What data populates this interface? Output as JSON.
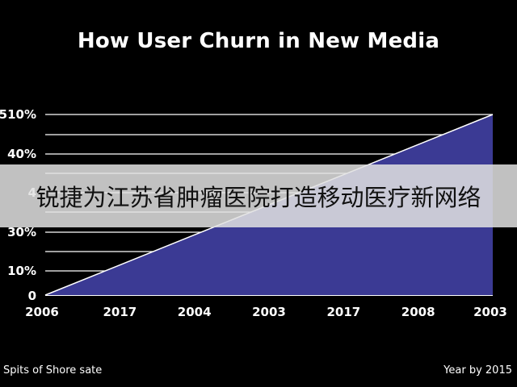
{
  "chart_data": {
    "type": "area",
    "title": "How User Churn in New Media",
    "categories": [
      "2006",
      "2017",
      "2004",
      "2003",
      "2017",
      "2008",
      "2003"
    ],
    "y_tick_labels": [
      "510%",
      "40%",
      "4",
      "30%",
      "10%",
      "0"
    ],
    "series": [
      {
        "values": [
          0,
          85,
          170,
          255,
          340,
          425,
          510
        ]
      }
    ],
    "ylim": [
      0,
      510
    ],
    "grid": true,
    "colors": {
      "fill": "#3b3a94",
      "edge": "#ffffff",
      "grid": "#ffffff"
    }
  },
  "banner": {
    "text": "锐捷为江苏省肿瘤医院打造移动医疗新网络"
  },
  "footer": {
    "left": "Spits of Shore sate",
    "right": "Year by 2015"
  }
}
